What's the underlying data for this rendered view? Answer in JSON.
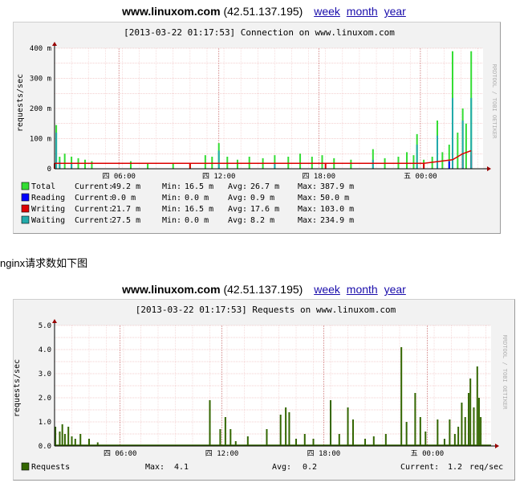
{
  "graphs": [
    {
      "host": "www.linuxom.com",
      "ip": "(42.51.137.195)",
      "links": [
        "week",
        "month",
        "year"
      ],
      "chart_title": "[2013-03-22 01:17:53] Connection on www.linuxom.com",
      "ylabel": "requests/sec",
      "watermark": "RRDTOOL / TOBI OETIKER",
      "y_ticks": [
        "400 m",
        "300 m",
        "200 m",
        "100 m",
        "0"
      ],
      "x_ticks": [
        "四 06:00",
        "四 12:00",
        "四 18:00",
        "五 00:00"
      ],
      "colors": {
        "total": "#33dd33",
        "reading": "#0000ff",
        "writing": "#dd0000",
        "waiting": "#22aaaa"
      },
      "legend": [
        {
          "name": "Total",
          "color": "#33dd33",
          "current": "Current:",
          "current_val": "49.2 m",
          "min": "Min:",
          "min_val": "16.5 m",
          "avg": "Avg:",
          "avg_val": "26.7 m",
          "max": "Max:",
          "max_val": "387.9 m"
        },
        {
          "name": "Reading",
          "color": "#0000ff",
          "current": "Current:",
          "current_val": "0.0 m",
          "min": "Min:",
          "min_val": "0.0 m",
          "avg": "Avg:",
          "avg_val": "0.9 m",
          "max": "Max:",
          "max_val": "50.0 m"
        },
        {
          "name": "Writing",
          "color": "#dd0000",
          "current": "Current:",
          "current_val": "21.7 m",
          "min": "Min:",
          "min_val": "16.5 m",
          "avg": "Avg:",
          "avg_val": "17.6 m",
          "max": "Max:",
          "max_val": "103.0 m"
        },
        {
          "name": "Waiting",
          "color": "#22aaaa",
          "current": "Current:",
          "current_val": "27.5 m",
          "min": "Min:",
          "min_val": "0.0 m",
          "avg": "Avg:",
          "avg_val": "8.2 m",
          "max": "Max:",
          "max_val": "234.9 m"
        }
      ]
    },
    {
      "host": "www.linuxom.com",
      "ip": "(42.51.137.195)",
      "links": [
        "week",
        "month",
        "year"
      ],
      "chart_title": "[2013-03-22 01:17:53] Requests on www.linuxom.com",
      "ylabel": "requests/sec",
      "watermark": "RRDTOOL / TOBI OETIKER",
      "y_ticks": [
        "5.0",
        "4.0",
        "3.0",
        "2.0",
        "1.0",
        "0.0"
      ],
      "x_ticks": [
        "四 06:00",
        "四 12:00",
        "四 18:00",
        "五 00:00"
      ],
      "colors": {
        "requests": "#336600"
      },
      "legend": {
        "name": "Requests",
        "color": "#336600",
        "max": "Max:",
        "max_val": "4.1",
        "avg": "Avg:",
        "avg_val": "0.2",
        "current": "Current:",
        "current_val": "1.2",
        "unit": "req/sec"
      }
    }
  ],
  "intro_text": "nginx请求数如下图",
  "chart_data": [
    {
      "type": "bar",
      "title": "[2013-03-22 01:17:53] Connection on www.linuxom.com",
      "ylabel": "requests/sec",
      "ylim": [
        0,
        400
      ],
      "y_unit": "m",
      "x_range_hours": [
        0,
        25.3
      ],
      "x_tick_labels": [
        "四 06:00",
        "四 12:00",
        "四 18:00",
        "五 00:00"
      ],
      "x_tick_hours": [
        3.8,
        9.7,
        15.6,
        21.6
      ],
      "series": [
        {
          "name": "Total",
          "points": [
            [
              0.1,
              145
            ],
            [
              0.3,
              40
            ],
            [
              0.6,
              50
            ],
            [
              1.0,
              40
            ],
            [
              1.4,
              35
            ],
            [
              1.8,
              30
            ],
            [
              2.2,
              25
            ],
            [
              4.5,
              25
            ],
            [
              5.5,
              20
            ],
            [
              7.0,
              20
            ],
            [
              8.0,
              20
            ],
            [
              8.9,
              45
            ],
            [
              9.3,
              40
            ],
            [
              9.7,
              85
            ],
            [
              10.2,
              40
            ],
            [
              10.8,
              30
            ],
            [
              11.5,
              40
            ],
            [
              12.3,
              35
            ],
            [
              13.0,
              45
            ],
            [
              13.8,
              40
            ],
            [
              14.5,
              50
            ],
            [
              15.2,
              40
            ],
            [
              15.8,
              45
            ],
            [
              16.5,
              35
            ],
            [
              17.5,
              30
            ],
            [
              18.8,
              65
            ],
            [
              19.5,
              35
            ],
            [
              20.3,
              40
            ],
            [
              20.8,
              55
            ],
            [
              21.2,
              45
            ],
            [
              21.4,
              115
            ],
            [
              21.8,
              30
            ],
            [
              22.3,
              40
            ],
            [
              22.6,
              160
            ],
            [
              22.9,
              55
            ],
            [
              23.3,
              80
            ],
            [
              23.5,
              390
            ],
            [
              23.8,
              120
            ],
            [
              24.1,
              200
            ],
            [
              24.3,
              150
            ],
            [
              24.6,
              390
            ]
          ]
        },
        {
          "name": "Reading",
          "points": [
            [
              22.6,
              20
            ],
            [
              23.3,
              25
            ],
            [
              23.5,
              50
            ],
            [
              24.1,
              30
            ],
            [
              24.6,
              45
            ]
          ]
        },
        {
          "name": "Writing",
          "points": [
            [
              0,
              18
            ],
            [
              8,
              18
            ],
            [
              16,
              18
            ],
            [
              21.8,
              18
            ],
            [
              23.5,
              30
            ],
            [
              24.1,
              50
            ],
            [
              24.6,
              60
            ]
          ]
        },
        {
          "name": "Waiting",
          "points": [
            [
              0.1,
              120
            ],
            [
              0.3,
              25
            ],
            [
              1.0,
              20
            ],
            [
              9.7,
              60
            ],
            [
              13.0,
              20
            ],
            [
              18.8,
              30
            ],
            [
              21.4,
              80
            ],
            [
              22.6,
              110
            ],
            [
              23.5,
              235
            ],
            [
              24.1,
              160
            ],
            [
              24.6,
              235
            ]
          ]
        }
      ]
    },
    {
      "type": "bar",
      "title": "[2013-03-22 01:17:53] Requests on www.linuxom.com",
      "ylabel": "requests/sec",
      "ylim": [
        0,
        5
      ],
      "x_range_hours": [
        0,
        25.3
      ],
      "x_tick_labels": [
        "四 06:00",
        "四 12:00",
        "四 18:00",
        "五 00:00"
      ],
      "x_tick_hours": [
        3.8,
        9.7,
        15.6,
        21.6
      ],
      "series": [
        {
          "name": "Requests",
          "points": [
            [
              0.05,
              0.8
            ],
            [
              0.3,
              0.6
            ],
            [
              0.45,
              0.9
            ],
            [
              0.6,
              0.5
            ],
            [
              0.8,
              0.8
            ],
            [
              1.0,
              0.4
            ],
            [
              1.2,
              0.3
            ],
            [
              1.5,
              0.5
            ],
            [
              2.0,
              0.3
            ],
            [
              2.5,
              0.15
            ],
            [
              9.0,
              1.9
            ],
            [
              9.6,
              0.7
            ],
            [
              9.9,
              1.2
            ],
            [
              10.2,
              0.7
            ],
            [
              10.5,
              0.2
            ],
            [
              11.2,
              0.4
            ],
            [
              12.3,
              0.7
            ],
            [
              13.1,
              1.3
            ],
            [
              13.4,
              1.6
            ],
            [
              13.6,
              1.4
            ],
            [
              14.0,
              0.3
            ],
            [
              14.5,
              0.5
            ],
            [
              15.0,
              0.3
            ],
            [
              16.0,
              1.9
            ],
            [
              16.5,
              0.5
            ],
            [
              17.0,
              1.6
            ],
            [
              17.3,
              1.1
            ],
            [
              18.0,
              0.3
            ],
            [
              18.5,
              0.4
            ],
            [
              19.2,
              0.5
            ],
            [
              20.1,
              4.1
            ],
            [
              20.4,
              1.0
            ],
            [
              20.9,
              2.2
            ],
            [
              21.2,
              1.2
            ],
            [
              21.5,
              0.6
            ],
            [
              22.2,
              1.1
            ],
            [
              22.6,
              0.3
            ],
            [
              22.9,
              1.1
            ],
            [
              23.2,
              0.5
            ],
            [
              23.4,
              0.8
            ],
            [
              23.6,
              1.8
            ],
            [
              23.8,
              1.2
            ],
            [
              24.0,
              2.2
            ],
            [
              24.1,
              2.8
            ],
            [
              24.3,
              1.6
            ],
            [
              24.5,
              3.3
            ],
            [
              24.6,
              2.0
            ],
            [
              24.7,
              1.2
            ]
          ]
        }
      ]
    }
  ]
}
